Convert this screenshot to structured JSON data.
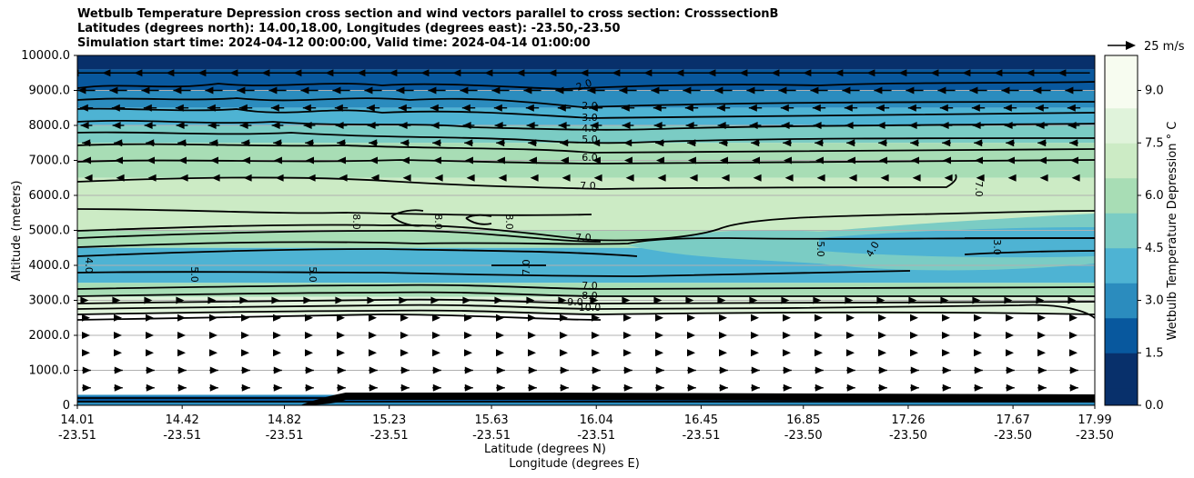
{
  "chart_data": {
    "type": "contour",
    "title_lines": [
      "Wetbulb Temperature Depression cross section and wind vectors parallel to cross section: CrosssectionB",
      "Latitudes (degrees north): 14.00,18.00, Longitudes (degrees east): -23.50,-23.50",
      "Simulation start time: 2024-04-12 00:00:00, Valid time: 2024-04-14 01:00:00"
    ],
    "ylabel": "Altitude (meters)",
    "xlabel_lat": "Latitude (degrees N)",
    "xlabel_lon": "Longitude (degrees E)",
    "ylim": [
      0,
      10000
    ],
    "yticks": [
      0,
      1000,
      2000,
      3000,
      4000,
      5000,
      6000,
      7000,
      8000,
      9000,
      10000
    ],
    "ytick_labels": [
      "0",
      "1000.0",
      "2000.0",
      "3000.0",
      "4000.0",
      "5000.0",
      "6000.0",
      "7000.0",
      "8000.0",
      "9000.0",
      "10000.0"
    ],
    "xlim": [
      14.01,
      17.99
    ],
    "xticks_lat": [
      14.01,
      14.42,
      14.82,
      15.23,
      15.63,
      16.04,
      16.45,
      16.85,
      17.26,
      17.67,
      17.99
    ],
    "xtick_lat_labels": [
      "14.01",
      "14.42",
      "14.82",
      "15.23",
      "15.63",
      "16.04",
      "16.45",
      "16.85",
      "17.26",
      "17.67",
      "17.99"
    ],
    "xtick_lon_labels": [
      "-23.51",
      "-23.51",
      "-23.51",
      "-23.51",
      "-23.51",
      "-23.51",
      "-23.51",
      "-23.50",
      "-23.50",
      "-23.50",
      "-23.50"
    ],
    "colorbar": {
      "label": "Wetbulb Temperature Depression $^\\circ$C",
      "label_display": "Wetbulb Temperature Depression ° C",
      "range": [
        0,
        10
      ],
      "ticks": [
        0.0,
        1.5,
        3.0,
        4.5,
        6.0,
        7.5,
        9.0
      ],
      "tick_labels": [
        "0.0",
        "1.5",
        "3.0",
        "4.5",
        "6.0",
        "7.5",
        "9.0"
      ],
      "colors": [
        "#08306b",
        "#08589e",
        "#2b8cbe",
        "#4eb3d3",
        "#7bccc4",
        "#a8ddb5",
        "#ccebc5",
        "#e0f3db",
        "#f7fcf0"
      ]
    },
    "wind_key": {
      "label": "25 m/s",
      "speed": 25
    },
    "contour_levels_labeled": [
      "2.0",
      "2.0",
      "3.0",
      "4.0",
      "5.0",
      "6.0",
      "7.0",
      "7.0",
      "8.0",
      "8.0",
      "8.0",
      "7.0",
      "5.0",
      "4.0",
      "4.0",
      "3.0",
      "5.0",
      "5.0",
      "7.0",
      "8.0",
      "9.0",
      "10.0",
      "7.0",
      "8.0"
    ],
    "wind_rows": [
      {
        "altitude": 9500,
        "direction": "west",
        "speed": 22
      },
      {
        "altitude": 9000,
        "direction": "west",
        "speed": 12
      },
      {
        "altitude": 8500,
        "direction": "west",
        "speed": 9
      },
      {
        "altitude": 8000,
        "direction": "west",
        "speed": 8
      },
      {
        "altitude": 7500,
        "direction": "west",
        "speed": 6
      },
      {
        "altitude": 7000,
        "direction": "west",
        "speed": 5
      },
      {
        "altitude": 6500,
        "direction": "west",
        "speed": 3
      },
      {
        "altitude": 3000,
        "direction": "east",
        "speed": 3
      },
      {
        "altitude": 2500,
        "direction": "east",
        "speed": 5
      },
      {
        "altitude": 2000,
        "direction": "east",
        "speed": 5
      },
      {
        "altitude": 1500,
        "direction": "east",
        "speed": 5
      },
      {
        "altitude": 1000,
        "direction": "east",
        "speed": 6
      },
      {
        "altitude": 500,
        "direction": "east",
        "speed": 6
      }
    ]
  }
}
